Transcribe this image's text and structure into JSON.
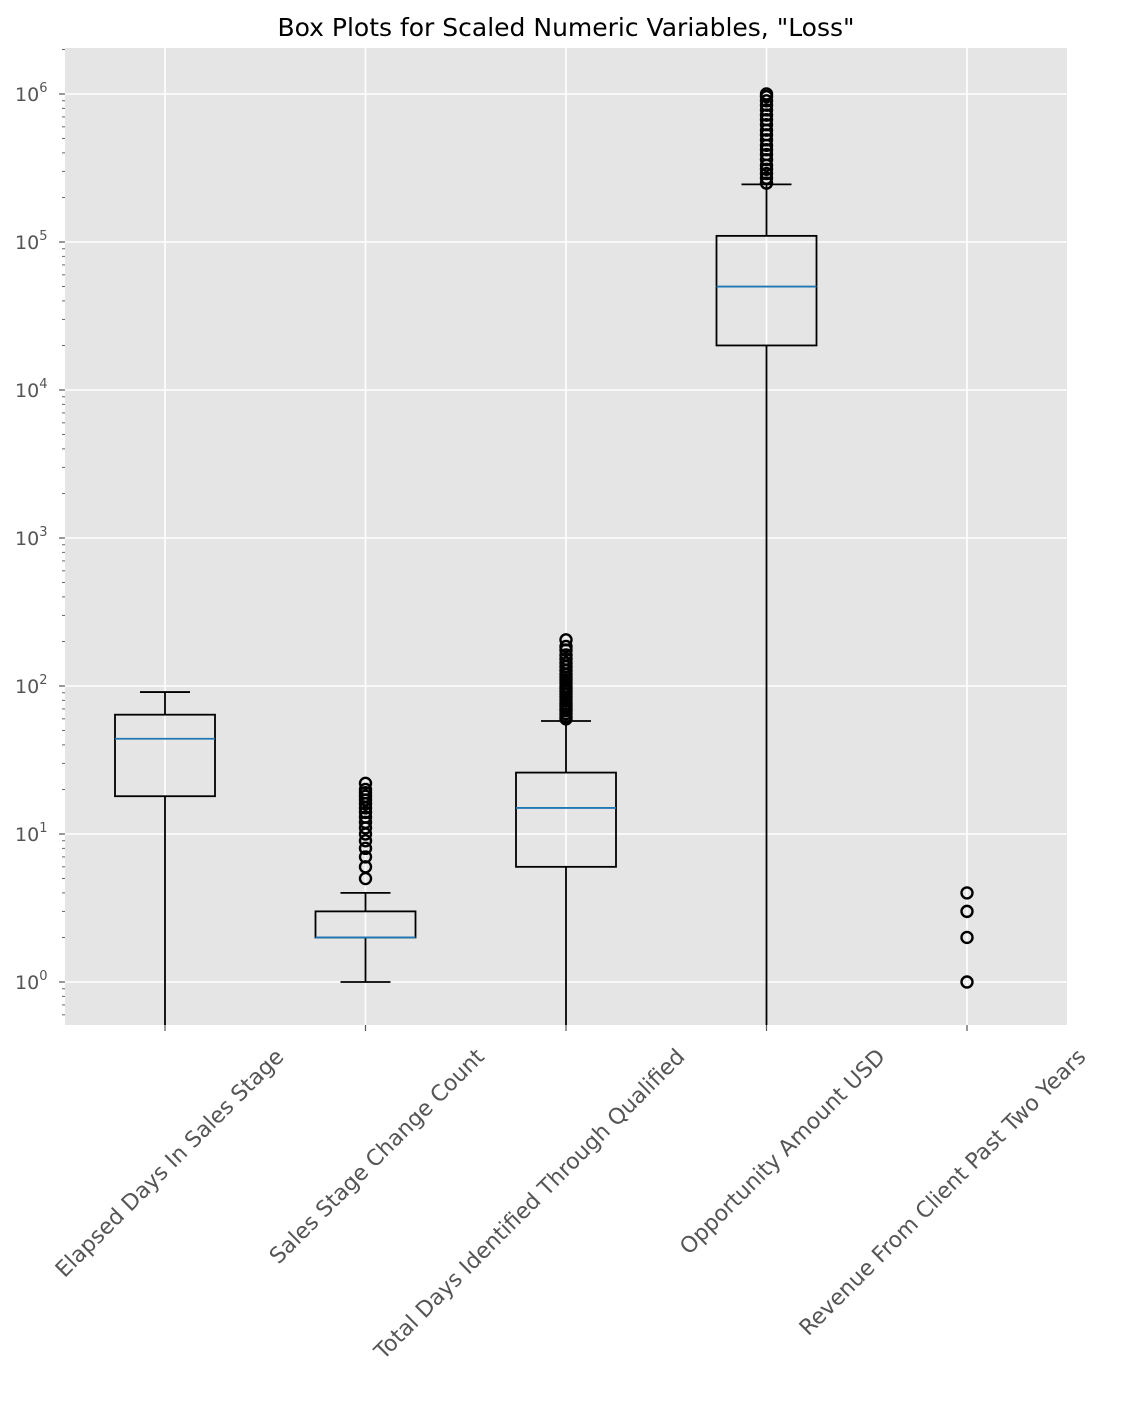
{
  "chart_data": {
    "type": "box",
    "title": "Box Plots for Scaled Numeric Variables, \"Loss\"",
    "yscale": "log",
    "ylim": [
      0.5,
      2000000
    ],
    "y_ticks": [
      {
        "value": 1,
        "base": "10",
        "exp": "0"
      },
      {
        "value": 10,
        "base": "10",
        "exp": "1"
      },
      {
        "value": 100,
        "base": "10",
        "exp": "2"
      },
      {
        "value": 1000,
        "base": "10",
        "exp": "3"
      },
      {
        "value": 10000,
        "base": "10",
        "exp": "4"
      },
      {
        "value": 100000,
        "base": "10",
        "exp": "5"
      },
      {
        "value": 1000000,
        "base": "10",
        "exp": "6"
      }
    ],
    "grid": true,
    "colors": {
      "background": "#e5e5e5",
      "grid": "#ffffff",
      "box": "#000000",
      "median": "#1f77b4",
      "tick_label": "#555555"
    },
    "series": [
      {
        "name": "Elapsed Days In Sales Stage",
        "whisker_low": 0,
        "q1": 18,
        "median": 44,
        "q3": 64,
        "whisker_high": 91,
        "fliers": []
      },
      {
        "name": "Sales Stage Change Count",
        "whisker_low": 1,
        "q1": 2,
        "median": 2,
        "q3": 3,
        "whisker_high": 4,
        "fliers": [
          5,
          6,
          7,
          8,
          9,
          10,
          11,
          12,
          13,
          14,
          15,
          16,
          17,
          18,
          19,
          20,
          22
        ]
      },
      {
        "name": "Total Days Identified Through Qualified",
        "whisker_low": 0,
        "q1": 6,
        "median": 15,
        "q3": 26,
        "whisker_high": 58,
        "fliers": [
          60,
          62,
          65,
          68,
          70,
          73,
          76,
          80,
          84,
          88,
          92,
          96,
          100,
          105,
          110,
          115,
          120,
          127,
          135,
          143,
          152,
          162,
          175,
          185,
          205
        ]
      },
      {
        "name": "Opportunity Amount USD",
        "whisker_low": 0,
        "q1": 20000,
        "median": 50000,
        "q3": 110000,
        "whisker_high": 245000,
        "fliers": [
          250000,
          270000,
          290000,
          310000,
          330000,
          360000,
          390000,
          420000,
          450000,
          490000,
          530000,
          570000,
          620000,
          670000,
          720000,
          780000,
          840000,
          900000,
          960000,
          1000000
        ]
      },
      {
        "name": "Revenue From Client Past Two Years",
        "whisker_low": 0,
        "q1": 0,
        "median": 0,
        "q3": 0,
        "whisker_high": 0,
        "fliers": [
          1,
          2,
          3,
          4
        ]
      }
    ]
  }
}
